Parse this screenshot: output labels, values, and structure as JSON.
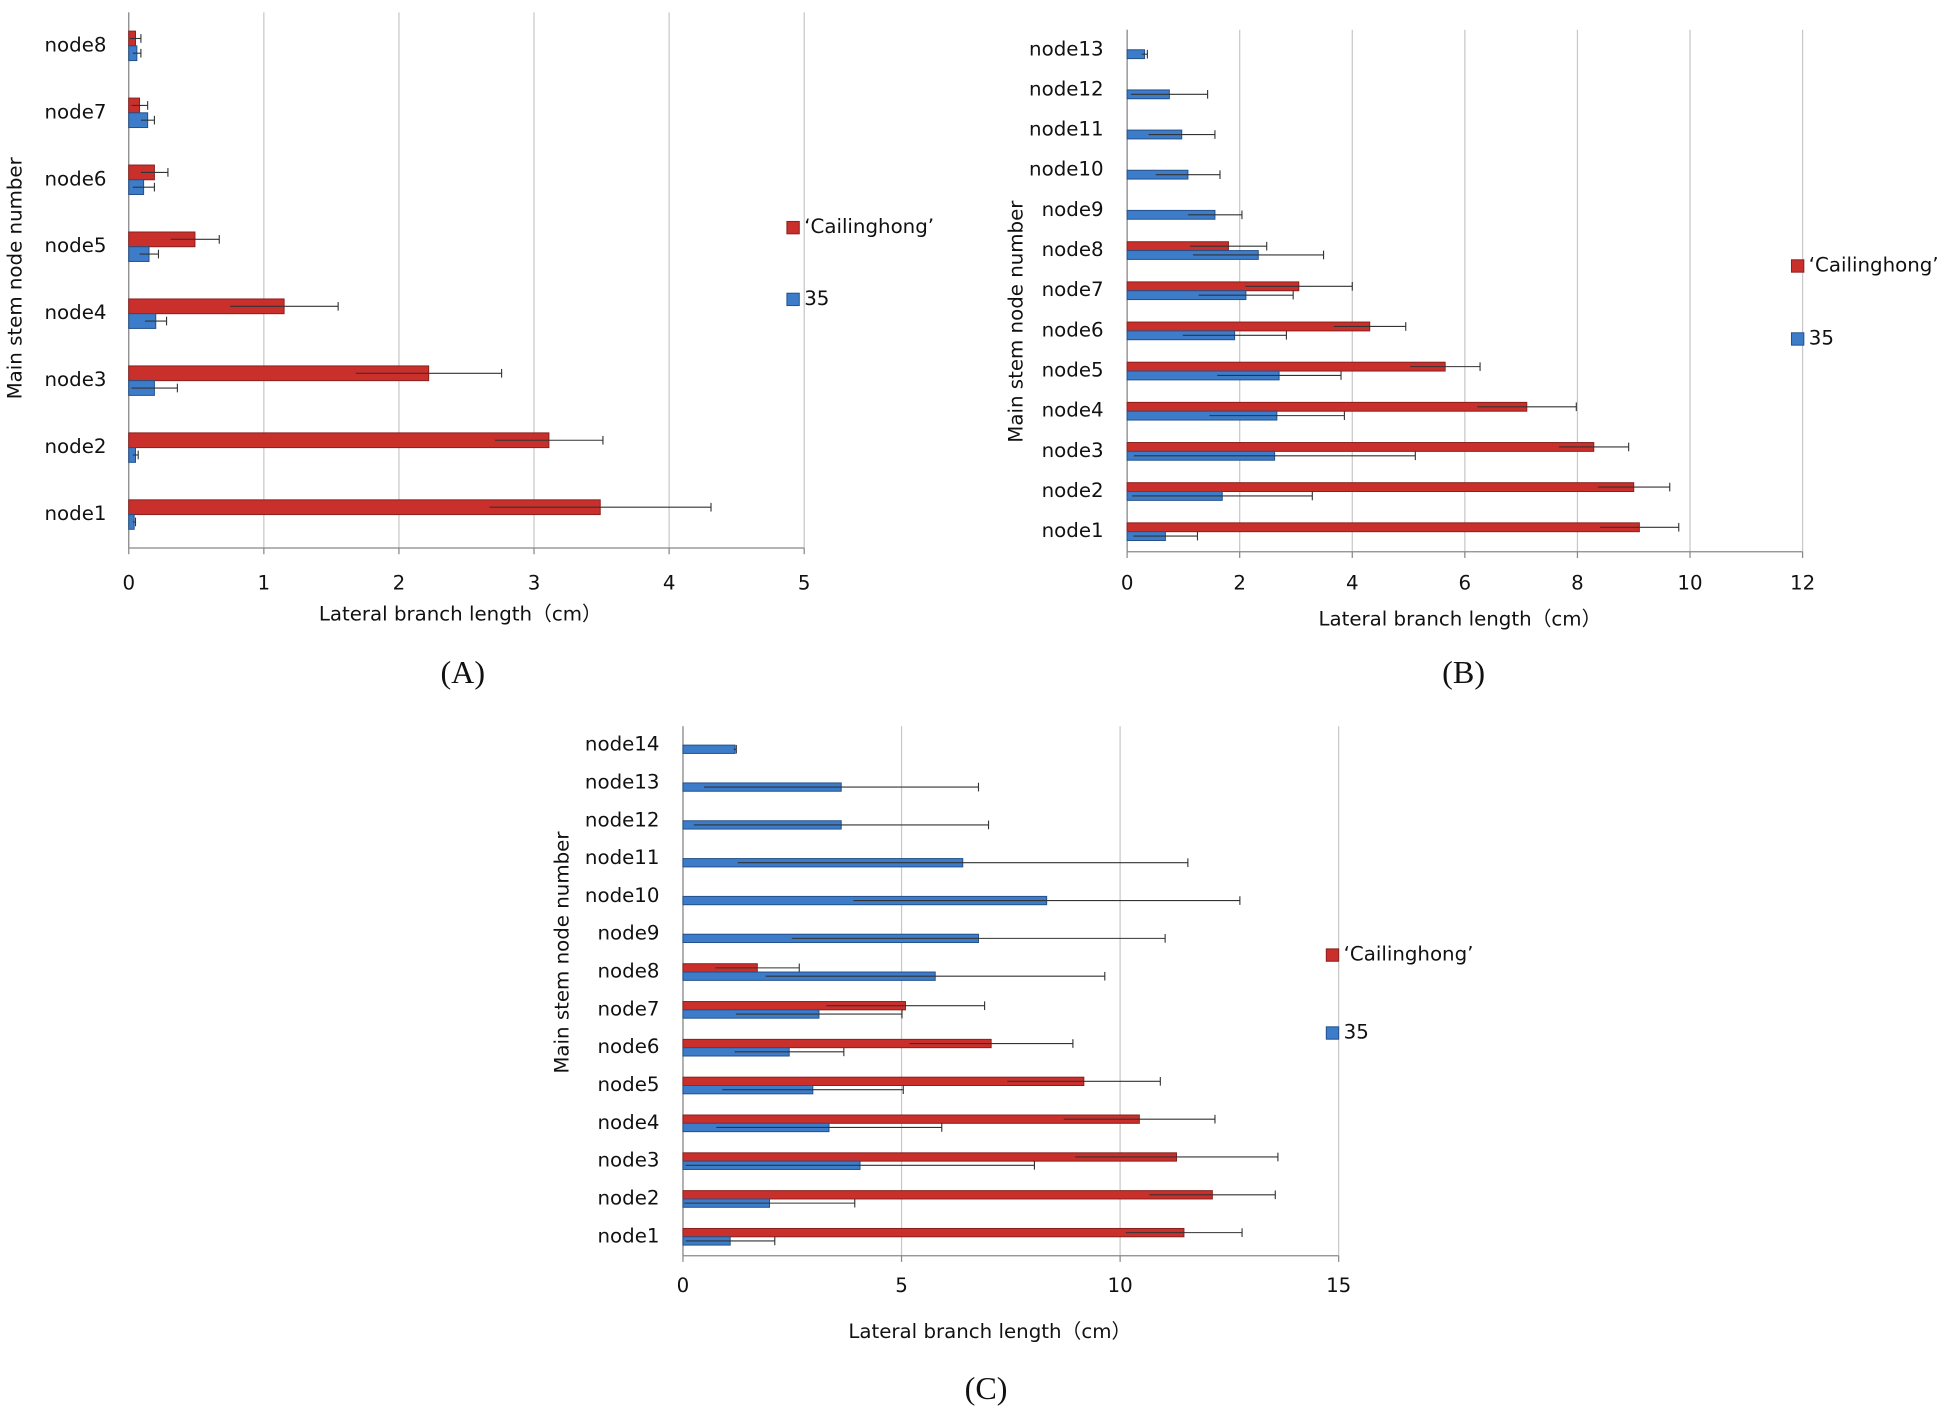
{
  "chart_data": [
    {
      "type": "bar",
      "orientation": "horizontal",
      "panel_label": "(A)",
      "xlabel": "Lateral branch length（cm）",
      "ylabel": "Main stem node number",
      "categories": [
        "node1",
        "node2",
        "node3",
        "node4",
        "node5",
        "node6",
        "node7",
        "node8"
      ],
      "series": [
        {
          "name": "‘Cailinghong’",
          "color": "#c9302c",
          "values": [
            3.49,
            3.11,
            2.22,
            1.15,
            0.49,
            0.19,
            0.08,
            0.05
          ],
          "errors": [
            0.82,
            0.4,
            0.54,
            0.4,
            0.18,
            0.1,
            0.06,
            0.04
          ]
        },
        {
          "name": "35",
          "color": "#3d7cc9",
          "values": [
            0.04,
            0.05,
            0.19,
            0.2,
            0.15,
            0.11,
            0.14,
            0.06
          ],
          "errors": [
            0.01,
            0.02,
            0.17,
            0.08,
            0.07,
            0.08,
            0.05,
            0.03
          ]
        }
      ],
      "xlim": [
        0,
        5
      ],
      "xticks": [
        0,
        1,
        2,
        3,
        4,
        5
      ],
      "grid": true,
      "legend": "right"
    },
    {
      "type": "bar",
      "orientation": "horizontal",
      "panel_label": "(B)",
      "xlabel": "Lateral branch length（cm）",
      "ylabel": "Main stem node number",
      "categories": [
        "node1",
        "node2",
        "node3",
        "node4",
        "node5",
        "node6",
        "node7",
        "node8",
        "node9",
        "node10",
        "node11",
        "node12",
        "node13"
      ],
      "series": [
        {
          "name": "‘Cailinghong’",
          "color": "#c9302c",
          "values": [
            9.1,
            9.0,
            8.29,
            7.1,
            5.65,
            4.31,
            3.05,
            1.8,
            null,
            null,
            null,
            null,
            null
          ],
          "errors": [
            0.7,
            0.64,
            0.62,
            0.88,
            0.62,
            0.64,
            0.95,
            0.68,
            null,
            null,
            null,
            null,
            null
          ]
        },
        {
          "name": "35",
          "color": "#3d7cc9",
          "values": [
            0.68,
            1.69,
            2.62,
            2.66,
            2.7,
            1.91,
            2.11,
            2.33,
            1.56,
            1.08,
            0.97,
            0.75,
            0.31
          ],
          "errors": [
            0.57,
            1.6,
            2.5,
            1.2,
            1.1,
            0.92,
            0.84,
            1.16,
            0.48,
            0.57,
            0.59,
            0.68,
            0.05
          ]
        }
      ],
      "xlim": [
        0,
        12
      ],
      "xticks": [
        0,
        2,
        4,
        6,
        8,
        10,
        12
      ],
      "grid": true,
      "legend": "right"
    },
    {
      "type": "bar",
      "orientation": "horizontal",
      "panel_label": "(C)",
      "xlabel": "Lateral branch length（cm）",
      "ylabel": "Main stem node number",
      "categories": [
        "node1",
        "node2",
        "node3",
        "node4",
        "node5",
        "node6",
        "node7",
        "node8",
        "node9",
        "node10",
        "node11",
        "node12",
        "node13",
        "node14"
      ],
      "series": [
        {
          "name": "‘Cailinghong’",
          "color": "#c9302c",
          "values": [
            11.46,
            12.11,
            11.29,
            10.44,
            9.17,
            7.05,
            5.09,
            1.7,
            null,
            null,
            null,
            null,
            null,
            null
          ],
          "errors": [
            1.33,
            1.44,
            2.32,
            1.73,
            1.75,
            1.87,
            1.81,
            0.96,
            null,
            null,
            null,
            null,
            null,
            null
          ]
        },
        {
          "name": "35",
          "color": "#3d7cc9",
          "values": [
            1.08,
            1.98,
            4.05,
            3.34,
            2.97,
            2.43,
            3.11,
            5.77,
            6.76,
            8.32,
            6.4,
            3.62,
            3.62,
            1.19
          ],
          "errors": [
            1.02,
            1.95,
            3.99,
            2.58,
            2.07,
            1.25,
            1.9,
            3.88,
            4.27,
            4.42,
            5.15,
            3.37,
            3.14,
            0.03
          ]
        }
      ],
      "xlim": [
        0,
        15
      ],
      "xticks": [
        0,
        5,
        10,
        15
      ],
      "grid": true,
      "legend": "right"
    }
  ]
}
